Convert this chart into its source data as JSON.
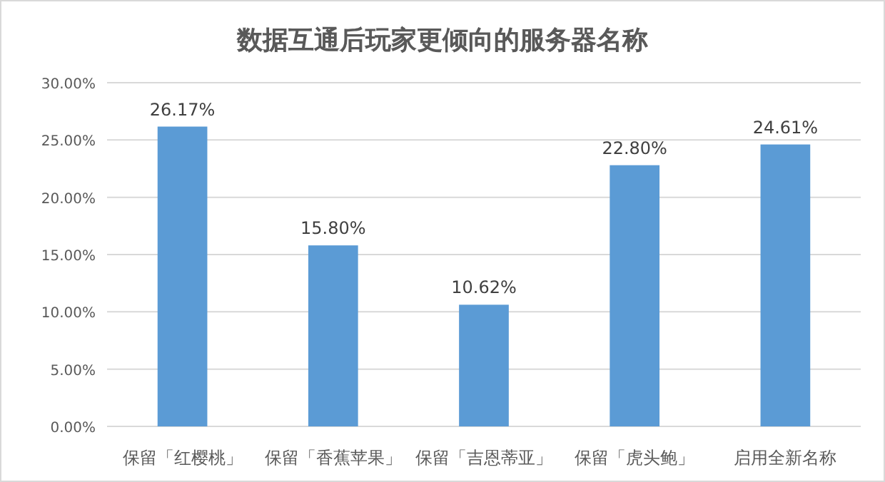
{
  "chart_data": {
    "type": "bar",
    "title": "数据互通后玩家更倾向的服务器名称",
    "categories": [
      "保留「红樱桃」",
      "保留「香蕉苹果」",
      "保留「吉恩蒂亚」",
      "保留「虎头鲍」",
      "启用全新名称"
    ],
    "values": [
      26.17,
      15.8,
      10.62,
      22.8,
      24.61
    ],
    "value_labels": [
      "26.17%",
      "15.80%",
      "10.62%",
      "22.80%",
      "24.61%"
    ],
    "color": "#5b9bd5",
    "ylim": [
      0,
      30
    ],
    "yticks": [
      {
        "value": 0,
        "label": "0.00%"
      },
      {
        "value": 5,
        "label": "5.00%"
      },
      {
        "value": 10,
        "label": "10.00%"
      },
      {
        "value": 15,
        "label": "15.00%"
      },
      {
        "value": 20,
        "label": "20.00%"
      },
      {
        "value": 25,
        "label": "25.00%"
      },
      {
        "value": 30,
        "label": "30.00%"
      }
    ],
    "grid": "y"
  }
}
